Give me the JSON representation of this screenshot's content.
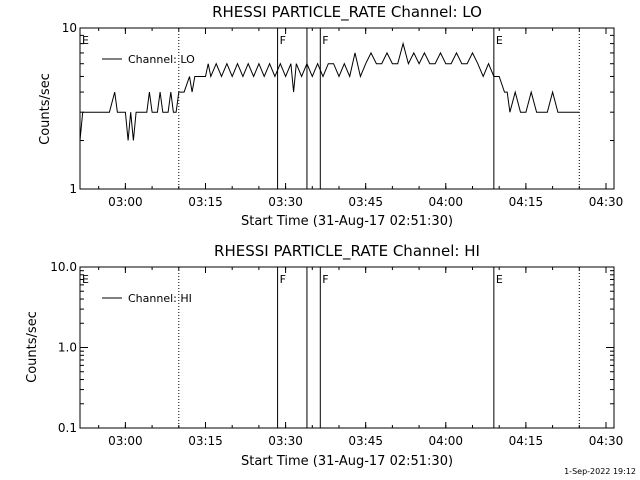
{
  "chart_data": [
    {
      "type": "line",
      "title": "RHESSI PARTICLE_RATE Channel: LO",
      "xlabel": "Start Time (31-Aug-17 02:51:30)",
      "ylabel": "Counts/sec",
      "yscale": "log",
      "ylim": [
        1,
        10
      ],
      "xlim": [
        "02:51:30",
        "04:31:30"
      ],
      "xticks": [
        "03:00",
        "03:15",
        "03:30",
        "03:45",
        "04:00",
        "04:15",
        "04:30"
      ],
      "yticks": [
        "1",
        "10"
      ],
      "grid": false,
      "legend_position": "top-left",
      "series": [
        {
          "name": "Channel: LO",
          "x": [
            "02:51:30",
            "02:52:00",
            "02:52:30",
            "02:53:00",
            "02:54:00",
            "02:55:00",
            "02:56:00",
            "02:57:00",
            "02:58:00",
            "02:58:30",
            "02:59:00",
            "02:59:30",
            "03:00:00",
            "03:00:30",
            "03:01:00",
            "03:01:30",
            "03:02:00",
            "03:03:00",
            "03:04:00",
            "03:04:30",
            "03:05:00",
            "03:06:00",
            "03:06:30",
            "03:07:00",
            "03:08:00",
            "03:08:30",
            "03:09:00",
            "03:09:30",
            "03:10:00",
            "03:11:00",
            "03:12:00",
            "03:12:30",
            "03:13:00",
            "03:14:00",
            "03:15:00",
            "03:15:30",
            "03:16:00",
            "03:17:00",
            "03:18:00",
            "03:19:00",
            "03:20:00",
            "03:21:00",
            "03:22:00",
            "03:23:00",
            "03:24:00",
            "03:25:00",
            "03:26:00",
            "03:27:00",
            "03:28:00",
            "03:29:00",
            "03:30:00",
            "03:31:00",
            "03:31:30",
            "03:32:00",
            "03:33:00",
            "03:34:00",
            "03:35:00",
            "03:36:00",
            "03:37:00",
            "03:38:00",
            "03:39:00",
            "03:40:00",
            "03:41:00",
            "03:42:00",
            "03:43:00",
            "03:44:00",
            "03:45:00",
            "03:46:00",
            "03:47:00",
            "03:48:00",
            "03:49:00",
            "03:50:00",
            "03:51:00",
            "03:52:00",
            "03:53:00",
            "03:54:00",
            "03:55:00",
            "03:56:00",
            "03:57:00",
            "03:58:00",
            "03:59:00",
            "04:00:00",
            "04:01:00",
            "04:02:00",
            "04:03:00",
            "04:04:00",
            "04:05:00",
            "04:06:00",
            "04:07:00",
            "04:08:00",
            "04:09:00",
            "04:10:00",
            "04:11:00",
            "04:11:30",
            "04:12:00",
            "04:13:00",
            "04:14:00",
            "04:15:00",
            "04:16:00",
            "04:17:00",
            "04:18:00",
            "04:19:00",
            "04:20:00",
            "04:21:00",
            "04:22:00",
            "04:23:00",
            "04:24:00",
            "04:25:00"
          ],
          "y": [
            2,
            3,
            3,
            3,
            3,
            3,
            3,
            3,
            4,
            3,
            3,
            3,
            3,
            2,
            3,
            2,
            3,
            3,
            3,
            4,
            3,
            3,
            4,
            3,
            3,
            4,
            3,
            3,
            4,
            4,
            5,
            4,
            5,
            5,
            5,
            6,
            5,
            6,
            5,
            6,
            5,
            6,
            5,
            6,
            5,
            6,
            5,
            6,
            5,
            6,
            5,
            6,
            4,
            6,
            5,
            6,
            5,
            6,
            5,
            6,
            6,
            5,
            6,
            5,
            7,
            5,
            6,
            7,
            6,
            6,
            7,
            6,
            6,
            8,
            6,
            7,
            6,
            7,
            6,
            6,
            7,
            6,
            6,
            7,
            6,
            6,
            7,
            6,
            5,
            6,
            5,
            5,
            4,
            4,
            3,
            4,
            3,
            3,
            4,
            3,
            3,
            3,
            4,
            3,
            3,
            3,
            3,
            3
          ]
        }
      ],
      "flags": [
        {
          "label": "E",
          "x": "02:51:30"
        },
        {
          "label": "F",
          "x": "03:28:30"
        },
        {
          "label": "F",
          "x": "03:36:30"
        },
        {
          "label": "E",
          "x": "04:09:00"
        }
      ],
      "solid_vlines": [
        "03:28:30",
        "03:34:00",
        "03:36:30",
        "04:09:00"
      ],
      "dotted_vlines": [
        "03:10:00",
        "04:25:00"
      ]
    },
    {
      "type": "line",
      "title": "RHESSI PARTICLE_RATE Channel: HI",
      "xlabel": "Start Time (31-Aug-17 02:51:30)",
      "ylabel": "Counts/sec",
      "yscale": "log",
      "ylim": [
        0.1,
        10.0
      ],
      "xlim": [
        "02:51:30",
        "04:31:30"
      ],
      "xticks": [
        "03:00",
        "03:15",
        "03:30",
        "03:45",
        "04:00",
        "04:15",
        "04:30"
      ],
      "yticks": [
        "0.1",
        "1.0",
        "10.0"
      ],
      "grid": false,
      "legend_position": "top-left",
      "series": [
        {
          "name": "Channel: HI",
          "x": [],
          "y": []
        }
      ],
      "flags": [
        {
          "label": "E",
          "x": "02:51:30"
        },
        {
          "label": "F",
          "x": "03:28:30"
        },
        {
          "label": "F",
          "x": "03:36:30"
        },
        {
          "label": "E",
          "x": "04:09:00"
        }
      ],
      "solid_vlines": [
        "03:28:30",
        "03:34:00",
        "03:36:30",
        "04:09:00"
      ],
      "dotted_vlines": [
        "03:10:00",
        "04:25:00"
      ]
    }
  ],
  "footer": {
    "timestamp": "1-Sep-2022 19:12"
  }
}
